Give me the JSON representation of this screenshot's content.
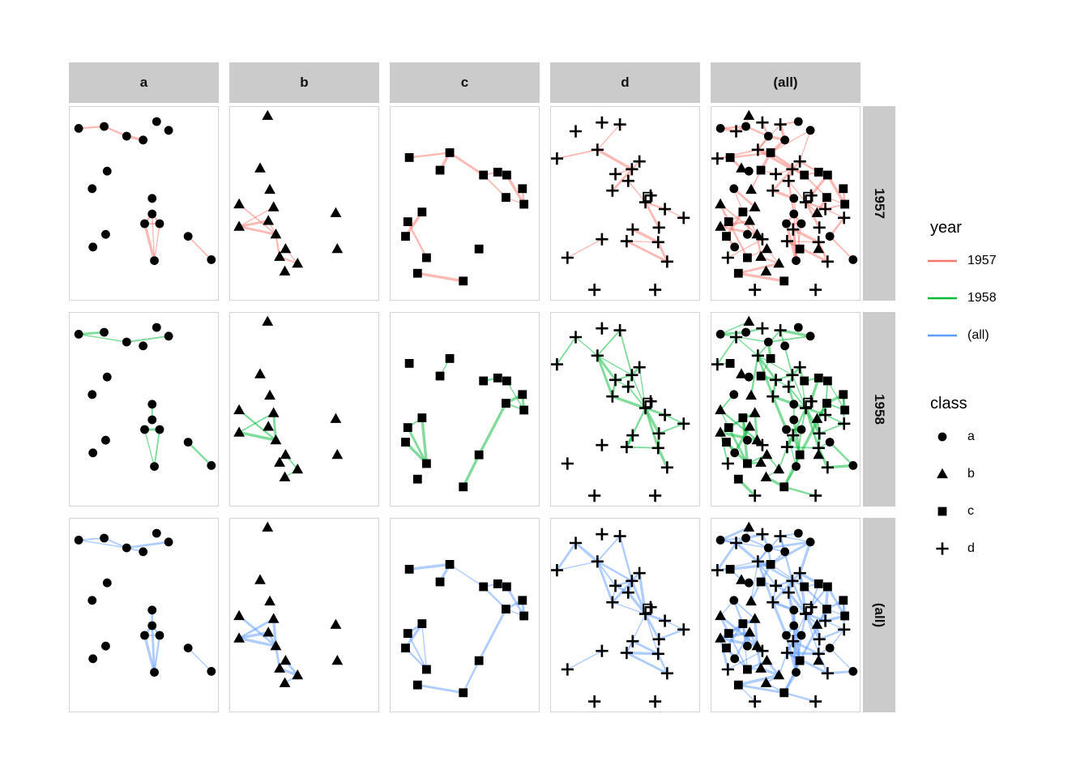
{
  "chart_data": {
    "type": "scatter",
    "title": "",
    "description": "Faceted network graph: columns = class (a,b,c,d,(all)), rows = year (1957,1958,(all)). Nodes are black markers shaped by class; edges are lines colored by year.",
    "facet_columns": [
      "a",
      "b",
      "c",
      "d",
      "(all)"
    ],
    "facet_rows": [
      "1957",
      "1958",
      "(all)"
    ],
    "legend": {
      "year": {
        "title": "year",
        "items": [
          {
            "label": "1957",
            "color": "#F8766D"
          },
          {
            "label": "1958",
            "color": "#00BA38"
          },
          {
            "label": "(all)",
            "color": "#619CFF"
          }
        ]
      },
      "class": {
        "title": "class",
        "items": [
          {
            "label": "a",
            "shape": "circle"
          },
          {
            "label": "b",
            "shape": "triangle"
          },
          {
            "label": "c",
            "shape": "square"
          },
          {
            "label": "d",
            "shape": "plus"
          }
        ]
      }
    },
    "nodes": {
      "a": [
        [
          0.06,
          0.11
        ],
        [
          0.23,
          0.1
        ],
        [
          0.38,
          0.15
        ],
        [
          0.49,
          0.17
        ],
        [
          0.58,
          0.075
        ],
        [
          0.66,
          0.12
        ],
        [
          0.25,
          0.33
        ],
        [
          0.15,
          0.42
        ],
        [
          0.55,
          0.47
        ],
        [
          0.55,
          0.55
        ],
        [
          0.5,
          0.6
        ],
        [
          0.6,
          0.6
        ],
        [
          0.565,
          0.79
        ],
        [
          0.24,
          0.655
        ],
        [
          0.155,
          0.72
        ],
        [
          0.79,
          0.665
        ],
        [
          0.945,
          0.785
        ]
      ],
      "b": [
        [
          0.25,
          0.045
        ],
        [
          0.2,
          0.315
        ],
        [
          0.265,
          0.425
        ],
        [
          0.06,
          0.5
        ],
        [
          0.29,
          0.515
        ],
        [
          0.255,
          0.585
        ],
        [
          0.06,
          0.615
        ],
        [
          0.305,
          0.655
        ],
        [
          0.705,
          0.545
        ],
        [
          0.37,
          0.73
        ],
        [
          0.33,
          0.77
        ],
        [
          0.45,
          0.805
        ],
        [
          0.365,
          0.845
        ],
        [
          0.715,
          0.73
        ]
      ],
      "c": [
        [
          0.125,
          0.26
        ],
        [
          0.395,
          0.235
        ],
        [
          0.33,
          0.325
        ],
        [
          0.62,
          0.35
        ],
        [
          0.715,
          0.335
        ],
        [
          0.775,
          0.35
        ],
        [
          0.88,
          0.42
        ],
        [
          0.77,
          0.465
        ],
        [
          0.89,
          0.5
        ],
        [
          0.21,
          0.54
        ],
        [
          0.115,
          0.59
        ],
        [
          0.1,
          0.665
        ],
        [
          0.24,
          0.775
        ],
        [
          0.59,
          0.73
        ],
        [
          0.18,
          0.855
        ],
        [
          0.485,
          0.895
        ]
      ],
      "d": [
        [
          0.165,
          0.125
        ],
        [
          0.34,
          0.08
        ],
        [
          0.46,
          0.09
        ],
        [
          0.04,
          0.265
        ],
        [
          0.31,
          0.22
        ],
        [
          0.59,
          0.28
        ],
        [
          0.43,
          0.345
        ],
        [
          0.54,
          0.32
        ],
        [
          0.515,
          0.38
        ],
        [
          0.41,
          0.43
        ],
        [
          0.665,
          0.455
        ],
        [
          0.63,
          0.49
        ],
        [
          0.76,
          0.525
        ],
        [
          0.885,
          0.57
        ],
        [
          0.72,
          0.62
        ],
        [
          0.545,
          0.63
        ],
        [
          0.505,
          0.69
        ],
        [
          0.34,
          0.68
        ],
        [
          0.715,
          0.695
        ],
        [
          0.11,
          0.775
        ],
        [
          0.775,
          0.795
        ],
        [
          0.29,
          0.94
        ],
        [
          0.695,
          0.94
        ]
      ],
      "special": [
        {
          "shape": "square-open",
          "pos": [
            0.645,
            0.462
          ],
          "show_in_columns": [
            "d",
            "(all)"
          ]
        }
      ]
    },
    "edges": {
      "1957": {
        "a": [
          [
            1,
            2
          ],
          [
            2,
            3
          ],
          [
            3,
            4
          ],
          [
            10,
            11
          ],
          [
            10,
            12
          ],
          [
            11,
            12
          ],
          [
            11,
            13
          ],
          [
            12,
            13
          ],
          [
            10,
            13
          ],
          [
            16,
            17
          ]
        ],
        "b": [
          [
            4,
            8
          ],
          [
            5,
            7
          ],
          [
            6,
            7
          ],
          [
            7,
            8
          ],
          [
            6,
            8
          ],
          [
            8,
            11
          ],
          [
            10,
            12
          ],
          [
            11,
            12
          ]
        ],
        "c": [
          [
            1,
            2
          ],
          [
            2,
            3
          ],
          [
            2,
            4
          ],
          [
            4,
            5
          ],
          [
            4,
            8
          ],
          [
            6,
            9
          ],
          [
            7,
            9
          ],
          [
            8,
            9
          ],
          [
            10,
            12
          ],
          [
            11,
            13
          ],
          [
            15,
            16
          ]
        ],
        "d": [
          [
            3,
            5
          ],
          [
            4,
            5
          ],
          [
            5,
            8
          ],
          [
            7,
            8
          ],
          [
            8,
            9
          ],
          [
            6,
            8
          ],
          [
            9,
            12
          ],
          [
            8,
            10
          ],
          [
            12,
            13
          ],
          [
            13,
            14
          ],
          [
            12,
            15
          ],
          [
            17,
            19
          ],
          [
            17,
            21
          ],
          [
            19,
            21
          ],
          [
            16,
            19
          ],
          [
            18,
            20
          ]
        ],
        "cross": [
          [
            "a1",
            "d1"
          ],
          [
            "a2",
            "d1"
          ],
          [
            "a2",
            "b1"
          ],
          [
            "a3",
            "d2"
          ],
          [
            "a3",
            "d5"
          ],
          [
            "a4",
            "d3"
          ],
          [
            "a5",
            "d3"
          ],
          [
            "a6",
            "c2"
          ],
          [
            "a4",
            "c2"
          ],
          [
            "c1",
            "d4"
          ],
          [
            "c1",
            "b2"
          ],
          [
            "c2",
            "d5"
          ],
          [
            "c3",
            "b3"
          ],
          [
            "c3",
            "d7"
          ],
          [
            "c4",
            "d8"
          ],
          [
            "c5",
            "d6"
          ],
          [
            "c6",
            "d11"
          ],
          [
            "c8",
            "b9"
          ],
          [
            "c9",
            "d13"
          ],
          [
            "a9",
            "d10"
          ],
          [
            "a9",
            "c14"
          ],
          [
            "a16",
            "d14"
          ],
          [
            "b2",
            "a7"
          ],
          [
            "b5",
            "a8"
          ],
          [
            "a8",
            "c10"
          ],
          [
            "b4",
            "c11"
          ],
          [
            "a14",
            "b6"
          ],
          [
            "a15",
            "c12"
          ],
          [
            "b8",
            "d18"
          ],
          [
            "b10",
            "c13"
          ],
          [
            "a13",
            "d16"
          ],
          [
            "c14",
            "d17"
          ],
          [
            "b12",
            "c15"
          ],
          [
            "d12",
            "b9"
          ],
          [
            "a10",
            "d9"
          ],
          [
            "d6",
            "a6"
          ]
        ]
      },
      "1958": {
        "a": [
          [
            1,
            2
          ],
          [
            1,
            3
          ],
          [
            3,
            6
          ],
          [
            9,
            10
          ],
          [
            11,
            12
          ],
          [
            11,
            13
          ],
          [
            12,
            13
          ],
          [
            16,
            17
          ]
        ],
        "b": [
          [
            4,
            8
          ],
          [
            5,
            7
          ],
          [
            5,
            8
          ],
          [
            7,
            8
          ],
          [
            10,
            12
          ],
          [
            12,
            13
          ]
        ],
        "c": [
          [
            2,
            3
          ],
          [
            4,
            5
          ],
          [
            6,
            9
          ],
          [
            7,
            8
          ],
          [
            7,
            9
          ],
          [
            8,
            9
          ],
          [
            8,
            14
          ],
          [
            14,
            16
          ],
          [
            10,
            11
          ],
          [
            10,
            13
          ],
          [
            11,
            13
          ],
          [
            12,
            13
          ]
        ],
        "d": [
          [
            1,
            4
          ],
          [
            1,
            5
          ],
          [
            3,
            5
          ],
          [
            5,
            7
          ],
          [
            5,
            8
          ],
          [
            5,
            10
          ],
          [
            3,
            8
          ],
          [
            6,
            8
          ],
          [
            7,
            8
          ],
          [
            7,
            9
          ],
          [
            8,
            9
          ],
          [
            7,
            10
          ],
          [
            8,
            12
          ],
          [
            9,
            12
          ],
          [
            10,
            12
          ],
          [
            6,
            12
          ],
          [
            12,
            13
          ],
          [
            12,
            15
          ],
          [
            12,
            17
          ],
          [
            12,
            19
          ],
          [
            13,
            14
          ],
          [
            14,
            15
          ],
          [
            16,
            17
          ],
          [
            17,
            19
          ],
          [
            15,
            19
          ],
          [
            19,
            21
          ]
        ],
        "cross": [
          [
            "a1",
            "b1"
          ],
          [
            "a2",
            "d2"
          ],
          [
            "a3",
            "c2"
          ],
          [
            "a6",
            "d3"
          ],
          [
            "a7",
            "b2"
          ],
          [
            "c1",
            "d4"
          ],
          [
            "d5",
            "b3"
          ],
          [
            "d7",
            "c3"
          ],
          [
            "a9",
            "d9"
          ],
          [
            "c4",
            "d6"
          ],
          [
            "c5",
            "d11"
          ],
          [
            "c6",
            "d13"
          ],
          [
            "c7",
            "d14"
          ],
          [
            "b9",
            "c8"
          ],
          [
            "b9",
            "d15"
          ],
          [
            "a16",
            "d19"
          ],
          [
            "a17",
            "d21"
          ],
          [
            "b4",
            "a8"
          ],
          [
            "c10",
            "a14"
          ],
          [
            "c11",
            "b4"
          ],
          [
            "c12",
            "a15"
          ],
          [
            "b6",
            "a15"
          ],
          [
            "d18",
            "b8"
          ],
          [
            "d20",
            "b7"
          ],
          [
            "b10",
            "c13"
          ],
          [
            "b11",
            "c13"
          ],
          [
            "a13",
            "c16"
          ],
          [
            "d22",
            "c15"
          ],
          [
            "c14",
            "d16"
          ],
          [
            "a11",
            "d10"
          ],
          [
            "a12",
            "d12"
          ],
          [
            "b13",
            "c16"
          ],
          [
            "d23",
            "c16"
          ],
          [
            "a10",
            "c14"
          ],
          [
            "b5",
            "c10"
          ],
          [
            "d17",
            "b12"
          ]
        ]
      },
      "(all)": "union_of_1957_and_1958"
    },
    "style": {
      "edge_colors": {
        "1957": "#F8766D",
        "1958": "#00BA38",
        "(all)": "#619CFF"
      },
      "node_color": "#000000",
      "strip_fill": "#CBCBCB",
      "strip_text_color": "#111111",
      "panel_border": "#D4D4D4",
      "background": "#FFFFFF"
    }
  }
}
